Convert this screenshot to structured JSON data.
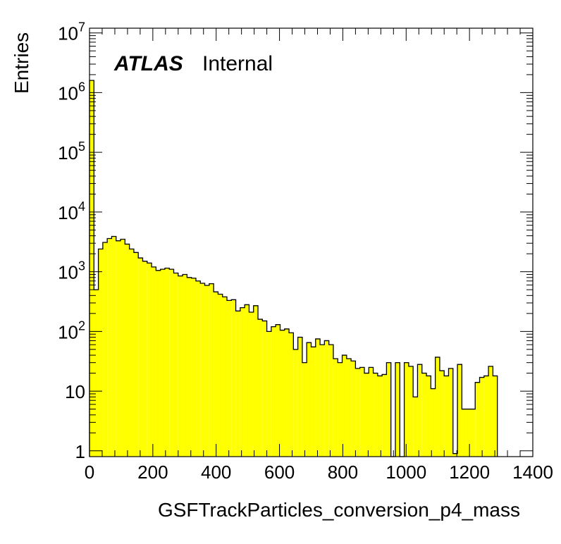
{
  "chart_data": {
    "type": "histogram",
    "xlabel": "GSFTrackParticles_conversion_p4_mass",
    "ylabel": "Entries",
    "label": {
      "experiment": "ATLAS",
      "status": "Internal"
    },
    "xlim": [
      0,
      1400
    ],
    "ylim": [
      0.8,
      12000000
    ],
    "yscale": "log",
    "fill_color": "#ffff00",
    "line_color": "#000000",
    "x_ticks": [
      {
        "value": 0,
        "label": "0"
      },
      {
        "value": 200,
        "label": "200"
      },
      {
        "value": 400,
        "label": "400"
      },
      {
        "value": 600,
        "label": "600"
      },
      {
        "value": 800,
        "label": "800"
      },
      {
        "value": 1000,
        "label": "1000"
      },
      {
        "value": 1200,
        "label": "1200"
      },
      {
        "value": 1400,
        "label": "1400"
      }
    ],
    "y_ticks": [
      {
        "value": 1,
        "base": "1",
        "exp": ""
      },
      {
        "value": 10,
        "base": "10",
        "exp": ""
      },
      {
        "value": 100,
        "base": "10",
        "exp": "2"
      },
      {
        "value": 1000,
        "base": "10",
        "exp": "3"
      },
      {
        "value": 10000,
        "base": "10",
        "exp": "4"
      },
      {
        "value": 100000,
        "base": "10",
        "exp": "5"
      },
      {
        "value": 1000000,
        "base": "10",
        "exp": "6"
      },
      {
        "value": 10000000,
        "base": "10",
        "exp": "7"
      }
    ],
    "bin_width": 14,
    "bin_edges_start": 0,
    "counts": [
      1600000,
      500,
      2400,
      3100,
      3600,
      3900,
      3300,
      3500,
      2900,
      2400,
      2100,
      1700,
      1500,
      1400,
      1200,
      1050,
      1100,
      1150,
      1100,
      950,
      850,
      900,
      800,
      780,
      700,
      640,
      590,
      630,
      460,
      420,
      380,
      330,
      340,
      220,
      250,
      280,
      210,
      270,
      160,
      150,
      100,
      120,
      130,
      105,
      110,
      95,
      50,
      80,
      30,
      65,
      55,
      75,
      60,
      70,
      60,
      35,
      30,
      40,
      35,
      32,
      24,
      25,
      20,
      25,
      20,
      18,
      19,
      30,
      0,
      30,
      0,
      30,
      26,
      8,
      28,
      20,
      18,
      11,
      37,
      22,
      18,
      24,
      0.9,
      28,
      5,
      5,
      5,
      14,
      17,
      18,
      26,
      18
    ]
  }
}
